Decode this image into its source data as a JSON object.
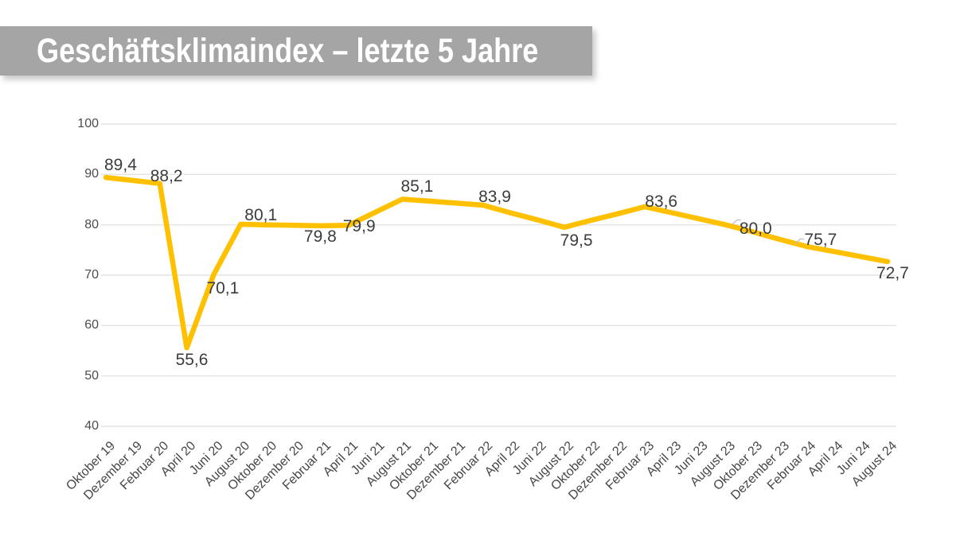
{
  "title": "Geschäftsklimaindex – letzte 5 Jahre",
  "colors": {
    "background": "#FFFFFF",
    "banner_bg": "#A5A5A5",
    "banner_text": "#FFFFFF",
    "line": "#FFC000",
    "gridline": "#E4E4E4",
    "axis_text": "#4D4D4D",
    "data_label_text": "#3C3C3C",
    "leader_line": "#BFBFBF"
  },
  "chart_data": {
    "type": "line",
    "title": "Geschäftsklimaindex – letzte 5 Jahre",
    "grid": "horizontal",
    "legend": "none",
    "ylim": [
      40,
      100
    ],
    "yticks": [
      100,
      90,
      80,
      70,
      60,
      50,
      40
    ],
    "decimal_separator": ",",
    "line_color": "#FFC000",
    "categories": [
      "Oktober 19",
      "Dezember 19",
      "Februar 20",
      "April 20",
      "Juni 20",
      "August 20",
      "Oktober 20",
      "Dezember 20",
      "Februar 21",
      "April 21",
      "Juni 21",
      "August 21",
      "Oktober 21",
      "Dezember 21",
      "Februar 22",
      "April 22",
      "Juni 22",
      "August 22",
      "Oktober 22",
      "Dezember 22",
      "Februar 23",
      "April 23",
      "Juni 23",
      "August 23",
      "Oktober 23",
      "Dezember 23",
      "Februar 24",
      "April 24",
      "Juni 24",
      "August 24"
    ],
    "series": [
      {
        "name": "Geschäftsklimaindex",
        "values": [
          89.4,
          88.8,
          88.2,
          55.6,
          70.1,
          80.1,
          80.0,
          79.9,
          79.8,
          79.9,
          82.5,
          85.1,
          84.7,
          84.3,
          83.9,
          82.4,
          81.0,
          79.5,
          80.9,
          82.2,
          83.6,
          82.4,
          81.2,
          80.0,
          78.6,
          77.1,
          75.7,
          74.7,
          73.7,
          72.7
        ]
      }
    ],
    "labeled_points": [
      {
        "category": "Oktober 19",
        "value": 89.4,
        "label": "89,4"
      },
      {
        "category": "Februar 20",
        "value": 88.2,
        "label": "88,2"
      },
      {
        "category": "April 20",
        "value": 55.6,
        "label": "55,6"
      },
      {
        "category": "Juni 20",
        "value": 70.1,
        "label": "70,1"
      },
      {
        "category": "August 20",
        "value": 80.1,
        "label": "80,1"
      },
      {
        "category": "Februar 21",
        "value": 79.8,
        "label": "79,8"
      },
      {
        "category": "April 21",
        "value": 79.9,
        "label": "79,9"
      },
      {
        "category": "August 21",
        "value": 85.1,
        "label": "85,1"
      },
      {
        "category": "Februar 22",
        "value": 83.9,
        "label": "83,9"
      },
      {
        "category": "August 22",
        "value": 79.5,
        "label": "79,5"
      },
      {
        "category": "Februar 23",
        "value": 83.6,
        "label": "83,6"
      },
      {
        "category": "August 23",
        "value": 80.0,
        "label": "80,0"
      },
      {
        "category": "Februar 24",
        "value": 75.7,
        "label": "75,7"
      },
      {
        "category": "August 24",
        "value": 72.7,
        "label": "72,7"
      }
    ]
  }
}
